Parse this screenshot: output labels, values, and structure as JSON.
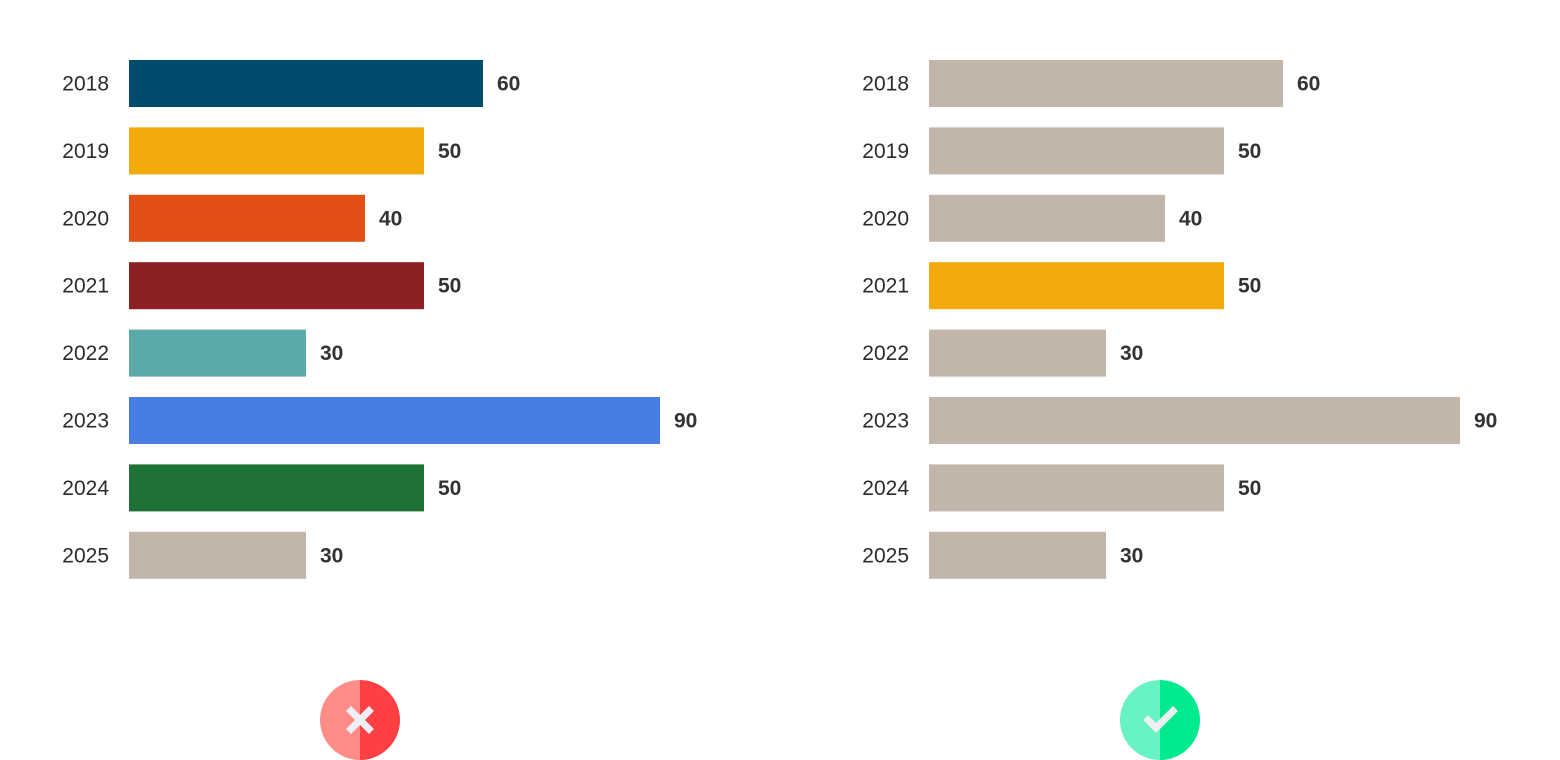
{
  "chart_data": [
    {
      "type": "bar",
      "orientation": "horizontal",
      "title": "",
      "xlabel": "",
      "ylabel": "",
      "categories": [
        "2018",
        "2019",
        "2020",
        "2021",
        "2022",
        "2023",
        "2024",
        "2025"
      ],
      "values": [
        60,
        50,
        40,
        50,
        30,
        90,
        50,
        30
      ],
      "xlim": [
        0,
        90
      ],
      "grid": false,
      "legend": "none",
      "colors": [
        "#004c6d",
        "#f2a90a",
        "#e25016",
        "#8c2022",
        "#59aaa8",
        "#477ee3",
        "#1e7238",
        "#c2b5a9"
      ]
    },
    {
      "type": "bar",
      "orientation": "horizontal",
      "title": "",
      "xlabel": "",
      "ylabel": "",
      "categories": [
        "2018",
        "2019",
        "2020",
        "2021",
        "2022",
        "2023",
        "2024",
        "2025"
      ],
      "values": [
        60,
        50,
        40,
        50,
        30,
        90,
        50,
        30
      ],
      "xlim": [
        0,
        90
      ],
      "grid": false,
      "legend": "none",
      "colors": [
        "#c2b5a9",
        "#c2b5a9",
        "#c2b5a9",
        "#f2a90a",
        "#c2b5a9",
        "#c2b5a9",
        "#c2b5a9",
        "#c2b5a9"
      ]
    }
  ],
  "badges": {
    "wrong": {
      "icon": "close-icon",
      "color_light": "#ff8c87",
      "color_dark": "#ff3f44"
    },
    "right": {
      "icon": "checkmark-icon",
      "color_light": "#67f3c1",
      "color_dark": "#00ea8f"
    }
  }
}
